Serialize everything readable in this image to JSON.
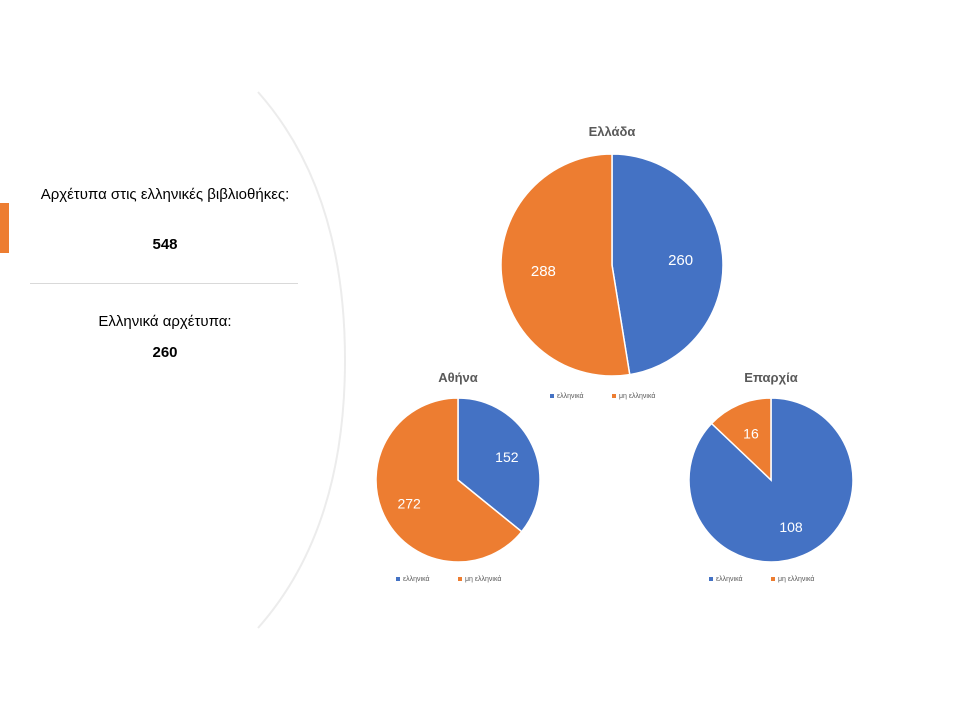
{
  "left_panel": {
    "block1_label": "Αρχέτυπα στις ελληνικές βιβλιοθήκες:",
    "block1_value": "548",
    "block2_label": "Ελληνικά αρχέτυπα:",
    "block2_value": "260"
  },
  "colors": {
    "blue": "#4472C4",
    "orange": "#ED7D31",
    "accent": "#ED7D31",
    "curve": "#ececec"
  },
  "chart_data": [
    {
      "type": "pie",
      "title": "Ελλάδα",
      "categories": [
        "ελληνικά",
        "μη ελληνικά"
      ],
      "values": [
        260,
        288
      ],
      "legend": "bottom"
    },
    {
      "type": "pie",
      "title": "Αθήνα",
      "categories": [
        "ελληνικά",
        "μη ελληνικά"
      ],
      "values": [
        152,
        272
      ],
      "legend": "bottom"
    },
    {
      "type": "pie",
      "title": "Επαρχία",
      "categories": [
        "ελληνικά",
        "μη ελληνικά"
      ],
      "values": [
        108,
        16
      ],
      "legend": "bottom"
    }
  ]
}
